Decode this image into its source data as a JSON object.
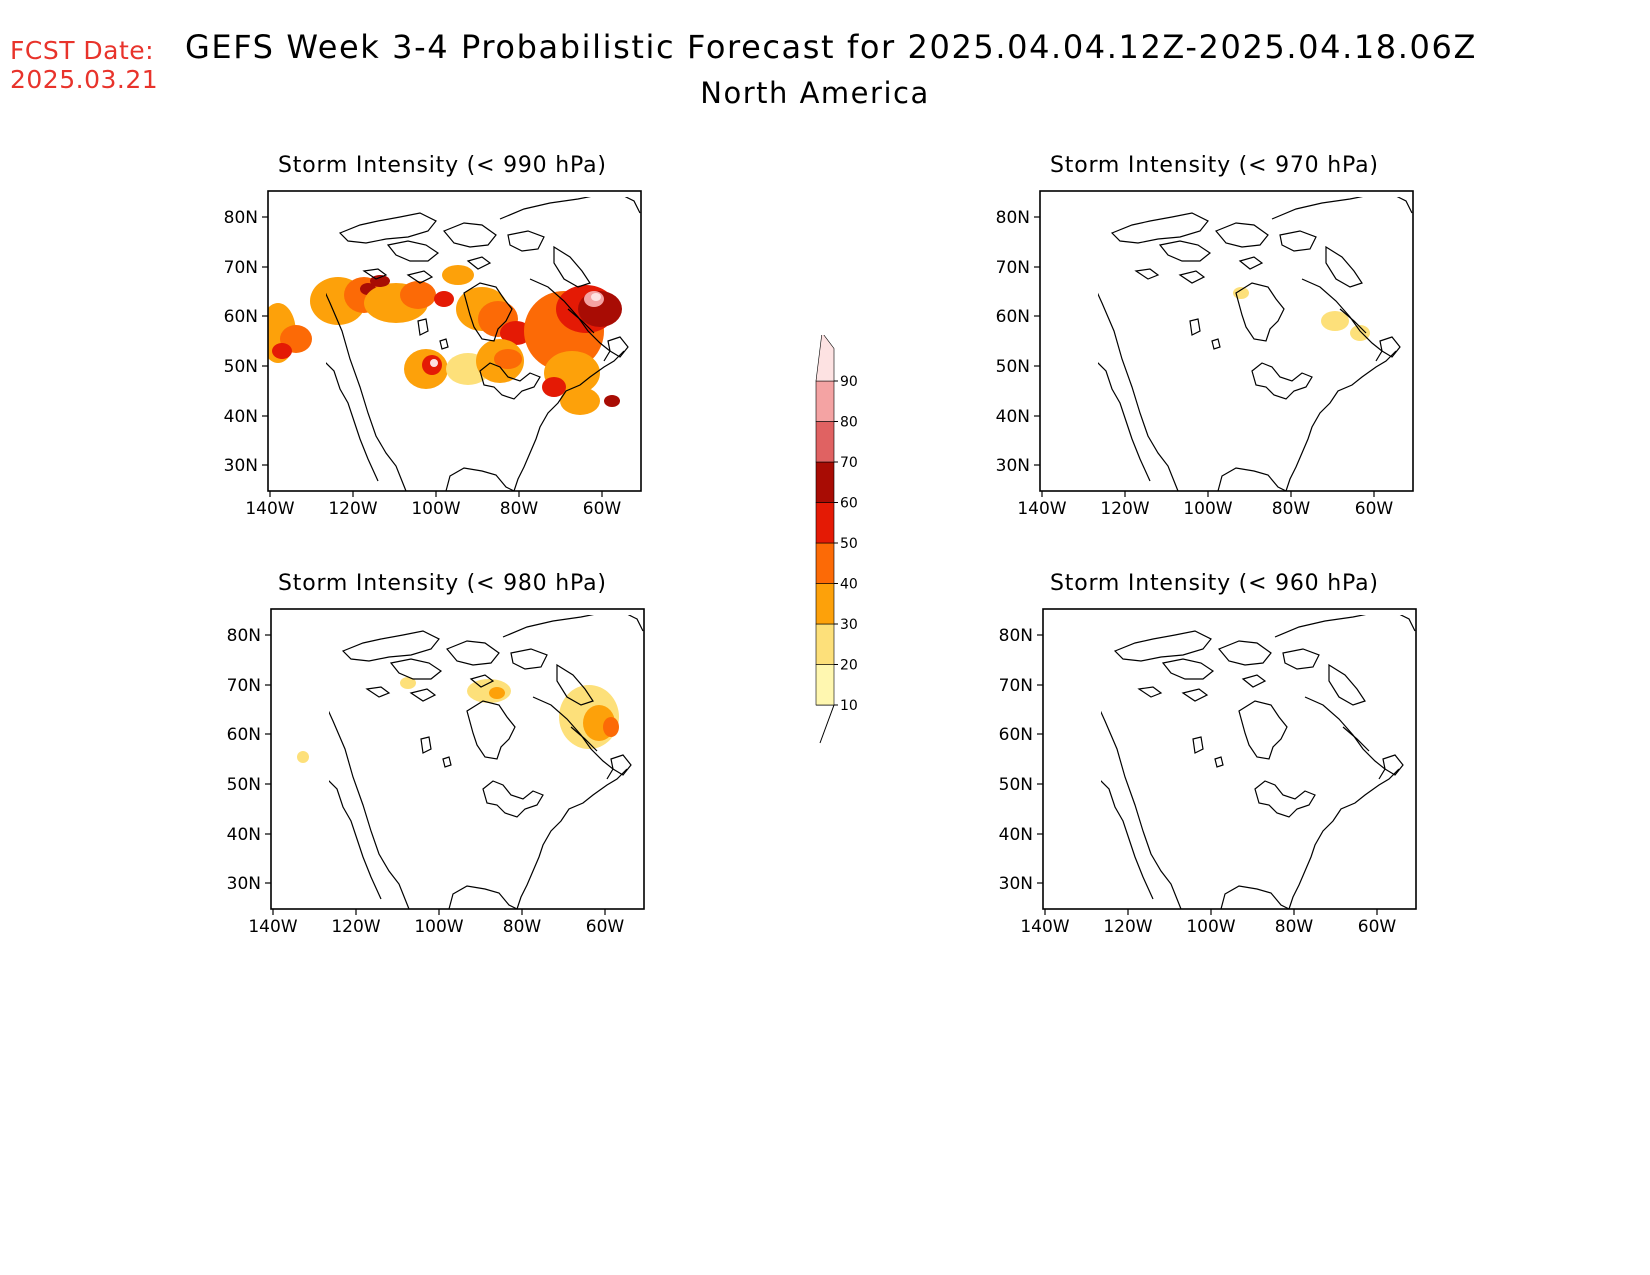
{
  "header": {
    "fcst_label": "FCST Date:",
    "fcst_date": "2025.03.21",
    "title": "GEFS Week 3-4 Probabilistic Forecast for 2025.04.04.12Z-2025.04.18.06Z",
    "subtitle": "North America"
  },
  "axes": {
    "lat_labels": [
      "80N",
      "70N",
      "60N",
      "50N",
      "40N",
      "30N"
    ],
    "lon_labels": [
      "140W",
      "120W",
      "100W",
      "80W",
      "60W"
    ]
  },
  "panels": [
    {
      "id": "p990",
      "title": "Storm Intensity (< 990 hPa)"
    },
    {
      "id": "p970",
      "title": "Storm Intensity (< 970 hPa)"
    },
    {
      "id": "p980",
      "title": "Storm Intensity (< 980 hPa)"
    },
    {
      "id": "p960",
      "title": "Storm Intensity (< 960 hPa)"
    }
  ],
  "colorbar": {
    "levels": [
      "10",
      "20",
      "30",
      "40",
      "50",
      "60",
      "70",
      "80",
      "90"
    ],
    "colors": [
      "#fff7b0",
      "#fde07a",
      "#fda10a",
      "#fc6a06",
      "#e41a05",
      "#a80c04",
      "#e06262",
      "#f4a3a3",
      "#fde2e2"
    ]
  }
}
